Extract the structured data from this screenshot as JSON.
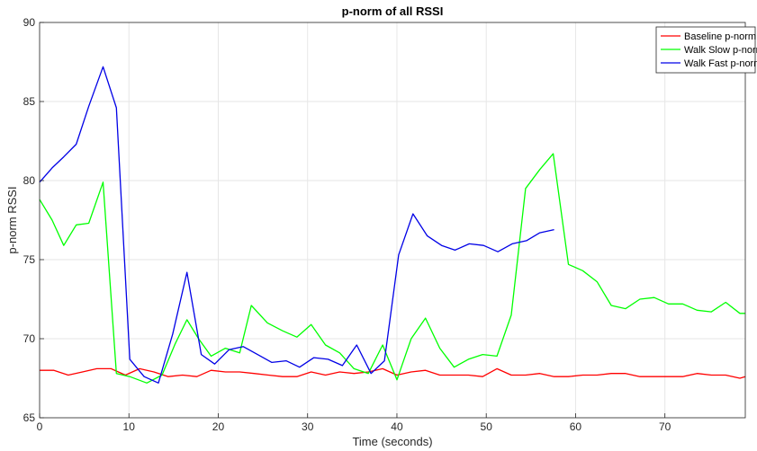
{
  "chart_data": {
    "type": "line",
    "title": "p-norm of all RSSI",
    "xlabel": "Time (seconds)",
    "ylabel": "p-norm RSSI",
    "xlim": [
      0,
      79
    ],
    "ylim": [
      65,
      90
    ],
    "xticks": [
      0,
      10,
      20,
      30,
      40,
      50,
      60,
      70
    ],
    "yticks": [
      65,
      70,
      75,
      80,
      85,
      90
    ],
    "grid": true,
    "legend_position": "top-right",
    "series": [
      {
        "name": "Baseline p-norm",
        "color": "#ff0000",
        "x": [
          0,
          1.6,
          3.2,
          4.8,
          6.4,
          8,
          9.6,
          11.2,
          12.8,
          14.4,
          16,
          17.6,
          19.2,
          20.8,
          22.4,
          24,
          25.6,
          27.2,
          28.8,
          30.4,
          32,
          33.6,
          35.2,
          36.8,
          38.4,
          40,
          41.6,
          43.2,
          44.8,
          46.4,
          48,
          49.6,
          51.2,
          52.8,
          54.4,
          56,
          57.6,
          59.2,
          60.8,
          62.4,
          64,
          65.6,
          67.2,
          68.8,
          70.4,
          72,
          73.6,
          75.2,
          76.8,
          78.4,
          79
        ],
        "values": [
          68,
          68,
          67.7,
          67.9,
          68.1,
          68.1,
          67.7,
          68.1,
          67.9,
          67.6,
          67.7,
          67.6,
          68,
          67.9,
          67.9,
          67.8,
          67.7,
          67.6,
          67.6,
          67.9,
          67.7,
          67.9,
          67.8,
          67.9,
          68.1,
          67.7,
          67.9,
          68,
          67.7,
          67.7,
          67.7,
          67.6,
          68.1,
          67.7,
          67.7,
          67.8,
          67.6,
          67.6,
          67.7,
          67.7,
          67.8,
          67.8,
          67.6,
          67.6,
          67.6,
          67.6,
          67.8,
          67.7,
          67.7,
          67.5,
          67.6
        ]
      },
      {
        "name": "Walk Slow p-norm",
        "color": "#00ff00",
        "x": [
          0,
          1.4,
          2.7,
          4.1,
          5.5,
          7.1,
          8.6,
          10.1,
          12,
          13.7,
          15.2,
          16.5,
          17.8,
          19.2,
          20.8,
          22.4,
          23.7,
          25.5,
          27.2,
          28.8,
          30.4,
          32,
          33.6,
          35.2,
          36.8,
          38.4,
          40,
          41.6,
          43.2,
          44.8,
          46.4,
          48,
          49.6,
          51.2,
          52.8,
          54.4,
          56,
          57.5,
          59.2,
          60.8,
          62.4,
          64,
          65.6,
          67.2,
          68.8,
          70.4,
          72,
          73.6,
          75.2,
          76.8,
          78.4,
          79
        ],
        "values": [
          78.8,
          77.5,
          75.9,
          77.2,
          77.3,
          79.9,
          67.8,
          67.6,
          67.2,
          67.7,
          69.7,
          71.2,
          70,
          68.9,
          69.4,
          69.1,
          72.1,
          71,
          70.5,
          70.1,
          70.9,
          69.6,
          69.1,
          68.1,
          67.8,
          69.6,
          67.4,
          70,
          71.3,
          69.4,
          68.2,
          68.7,
          69,
          68.9,
          71.5,
          79.5,
          80.7,
          81.7,
          74.7,
          74.3,
          73.6,
          72.1,
          71.9,
          72.5,
          72.6,
          72.2,
          72.2,
          71.8,
          71.7,
          72.3,
          71.6,
          71.6
        ]
      },
      {
        "name": "Walk Fast p-norm",
        "color": "#0000e6",
        "x": [
          0,
          1.4,
          2.7,
          4.1,
          5.5,
          7.1,
          8.6,
          10.1,
          11.7,
          13.3,
          14.9,
          16.5,
          18.1,
          19.6,
          21.2,
          22.8,
          24.4,
          26,
          27.6,
          29.1,
          30.7,
          32.3,
          33.9,
          35.5,
          37.1,
          38.6,
          40.2,
          41.8,
          43.4,
          45,
          46.5,
          48.1,
          49.7,
          51.3,
          52.9,
          54.5,
          56,
          57.6
        ],
        "values": [
          79.9,
          80.8,
          81.5,
          82.3,
          84.7,
          87.2,
          84.6,
          68.7,
          67.6,
          67.2,
          70.3,
          74.2,
          69,
          68.4,
          69.3,
          69.5,
          69,
          68.5,
          68.6,
          68.2,
          68.8,
          68.7,
          68.3,
          69.6,
          67.8,
          68.6,
          75.3,
          77.9,
          76.5,
          75.9,
          75.6,
          76,
          75.9,
          75.5,
          76,
          76.2,
          76.7,
          76.9
        ]
      }
    ]
  }
}
